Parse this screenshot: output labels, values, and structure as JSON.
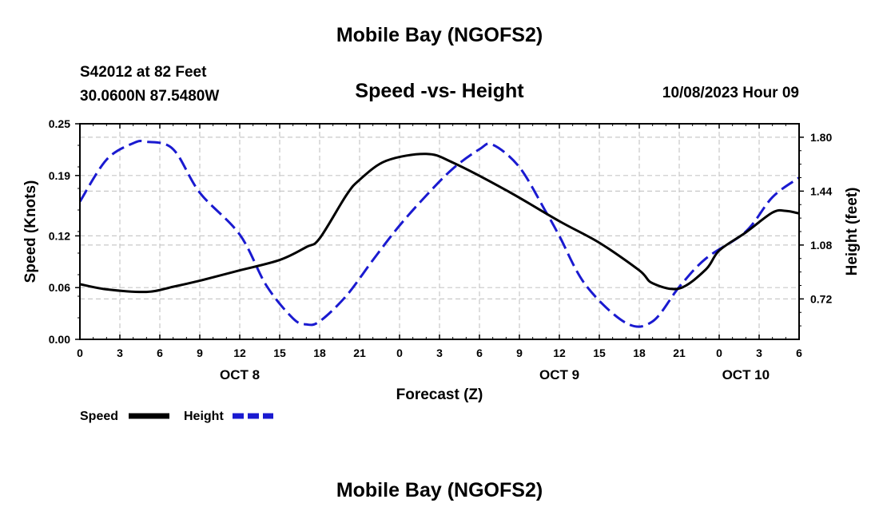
{
  "header": {
    "title": "Mobile Bay (NGOFS2)",
    "station": "S42012 at 82 Feet",
    "coords": "30.0600N  87.5480W",
    "subtitle": "Speed -vs- Height",
    "date": "10/08/2023 Hour 09"
  },
  "footer": {
    "title": "Mobile Bay (NGOFS2)"
  },
  "chart_data": {
    "type": "line",
    "title": "Speed -vs- Height",
    "xlabel": "Forecast (Z)",
    "ylabel_left": "Speed (Knots)",
    "ylabel_right": "Height (feet)",
    "x_range": [
      0,
      54
    ],
    "ylim_left": [
      0,
      0.25
    ],
    "ylim_right": [
      0.45,
      1.89
    ],
    "left_ticks": [
      "0.00",
      "0.06",
      "0.12",
      "0.19",
      "0.25"
    ],
    "right_ticks": [
      "0.72",
      "1.08",
      "1.44",
      "1.80"
    ],
    "x_tick_labels": [
      "0",
      "3",
      "6",
      "9",
      "12",
      "15",
      "18",
      "21",
      "0",
      "3",
      "6",
      "9",
      "12",
      "15",
      "18",
      "21",
      "0",
      "3",
      "6"
    ],
    "date_labels": [
      {
        "x": 12,
        "label": "OCT 8"
      },
      {
        "x": 36,
        "label": "OCT 9"
      },
      {
        "x": 50,
        "label": "OCT 10"
      }
    ],
    "grid": true,
    "legend": [
      "Speed",
      "Height"
    ],
    "series": [
      {
        "name": "Speed",
        "axis": "left",
        "color": "#000000",
        "dash": "none",
        "x": [
          0,
          2,
          5,
          7,
          9,
          12,
          15,
          17,
          18,
          20,
          21,
          23,
          26,
          28,
          32,
          36,
          39,
          42,
          43,
          45,
          47,
          48,
          50,
          52,
          53,
          54
        ],
        "y": [
          0.064,
          0.058,
          0.055,
          0.061,
          0.068,
          0.08,
          0.092,
          0.107,
          0.117,
          0.167,
          0.185,
          0.207,
          0.215,
          0.205,
          0.173,
          0.137,
          0.112,
          0.08,
          0.065,
          0.059,
          0.081,
          0.103,
          0.124,
          0.147,
          0.149,
          0.146
        ]
      },
      {
        "name": "Height",
        "axis": "right",
        "color": "#1a1ad0",
        "dash": "dashed",
        "x": [
          0,
          2,
          4,
          5,
          7,
          9,
          12,
          14,
          16,
          17,
          18,
          20,
          22,
          24,
          26,
          28,
          30,
          31,
          33,
          35,
          36,
          38,
          41,
          43,
          45,
          47,
          50,
          52,
          54
        ],
        "y": [
          1.37,
          1.65,
          1.76,
          1.77,
          1.72,
          1.43,
          1.15,
          0.81,
          0.59,
          0.55,
          0.57,
          0.74,
          0.98,
          1.21,
          1.41,
          1.59,
          1.72,
          1.75,
          1.6,
          1.3,
          1.14,
          0.81,
          0.56,
          0.57,
          0.8,
          0.99,
          1.17,
          1.4,
          1.53
        ]
      }
    ]
  }
}
